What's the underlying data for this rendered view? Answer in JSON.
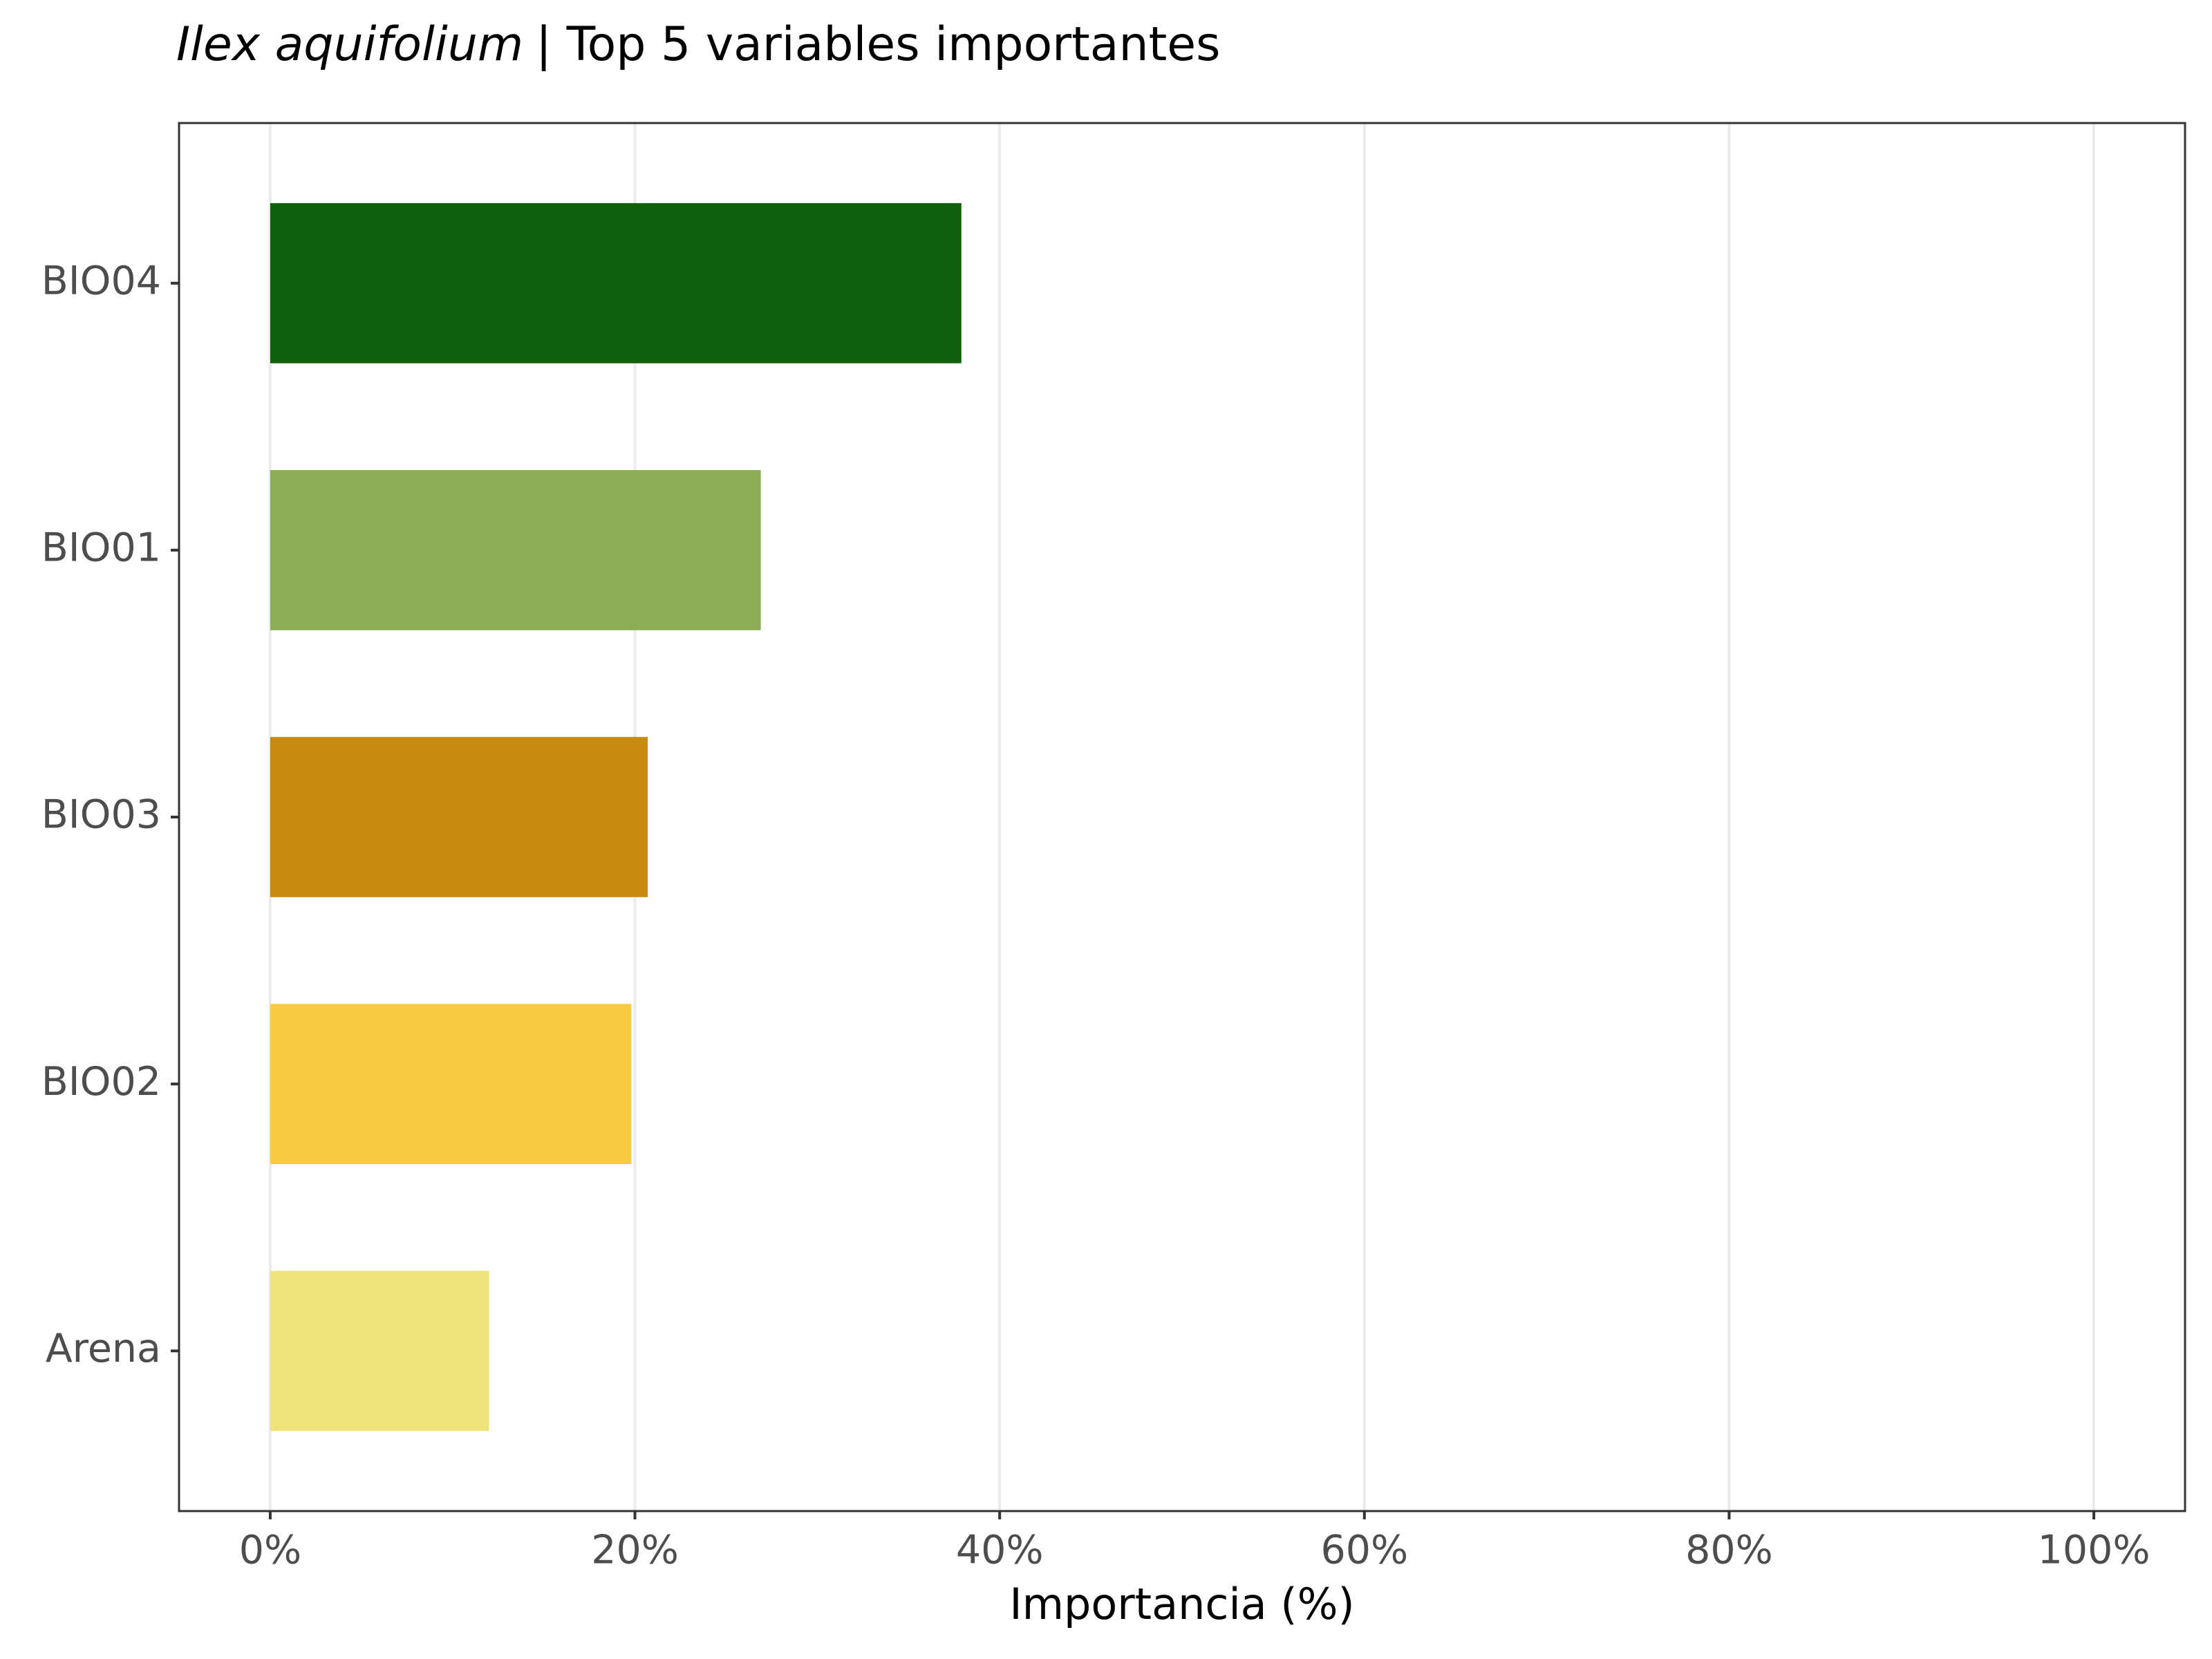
{
  "chart_data": {
    "type": "bar",
    "orientation": "horizontal",
    "title_italic": "Ilex aquifolium",
    "title": "| Top 5 variables importantes",
    "x_label": "Importancia (%)",
    "categories": [
      "BIO04",
      "BIO01",
      "BIO03",
      "BIO02",
      "Arena"
    ],
    "values": [
      37.9,
      26.9,
      20.7,
      19.8,
      12.0
    ],
    "colors": [
      "#10600e",
      "#8aad55",
      "#c88b0f",
      "#f6cb42",
      "#eee37c"
    ],
    "xlim": [
      -5,
      105
    ],
    "xticks": [
      {
        "value": 0,
        "label": "0%"
      },
      {
        "value": 20,
        "label": "20%"
      },
      {
        "value": 40,
        "label": "40%"
      },
      {
        "value": 60,
        "label": "60%"
      },
      {
        "value": 80,
        "label": "80%"
      },
      {
        "value": 100,
        "label": "100%"
      }
    ],
    "grid": true
  }
}
